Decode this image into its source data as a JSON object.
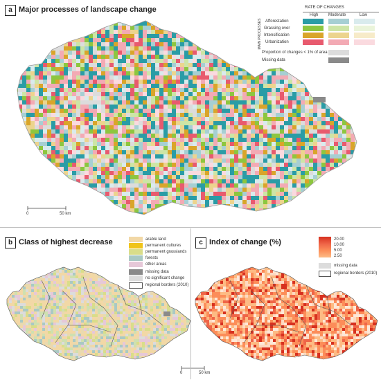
{
  "panel_a": {
    "letter": "a",
    "title": "Major processes of landscape change",
    "legend": {
      "header": "RATE OF CHANGES",
      "columns": [
        "High",
        "Moderate",
        "Low"
      ],
      "side_label": "MAIN PROCESSES",
      "rows": [
        {
          "label": "Afforestation",
          "colors": [
            "#2a9ca6",
            "#a6cfd3",
            "#d9ebed"
          ]
        },
        {
          "label": "Grassing over",
          "colors": [
            "#8dc63f",
            "#cde5a6",
            "#eaf4da"
          ]
        },
        {
          "label": "Intensification",
          "colors": [
            "#d9a52a",
            "#ecd48e",
            "#f7ebc9"
          ]
        },
        {
          "label": "Urbanization",
          "colors": [
            "#e85a6e",
            "#f3aab4",
            "#fadadf"
          ]
        }
      ],
      "extra": [
        {
          "label": "Proportion of changes < 1% of area",
          "color": "#dcdcdc"
        },
        {
          "label": "Missing data",
          "color": "#8a8a8a"
        }
      ]
    },
    "scale": {
      "start": "0",
      "end": "50 km"
    }
  },
  "panel_b": {
    "letter": "b",
    "title": "Class of highest decrease",
    "legend": [
      {
        "label": "arable land",
        "color": "#f2d8a6"
      },
      {
        "label": "permanent cultures",
        "color": "#f0c419"
      },
      {
        "label": "permanent grasslands",
        "color": "#d9dd8a"
      },
      {
        "label": "forests",
        "color": "#a9c9c4"
      },
      {
        "label": "other areas",
        "color": "#e6c8d8"
      }
    ],
    "extra": [
      {
        "label": "missing data",
        "color": "#8a8a8a"
      },
      {
        "label": "no significant change",
        "color": "#dcdcdc"
      },
      {
        "label": "regional borders (2010)",
        "color": "#ffffff"
      }
    ],
    "scale": {
      "start": "0",
      "end": "50 km"
    }
  },
  "panel_c": {
    "letter": "c",
    "title": "Index of change (%)",
    "legend": [
      {
        "label": "20.00",
        "color": "#d7301f"
      },
      {
        "label": "10.00",
        "color": "#ef6548"
      },
      {
        "label": "5.00",
        "color": "#fc8d59"
      },
      {
        "label": "2.50",
        "color": "#fdbb84"
      }
    ],
    "extra": [
      {
        "label": "missing data",
        "color": "#dcdcdc"
      },
      {
        "label": "regional borders (2010)",
        "color": "#ffffff"
      }
    ]
  },
  "map_colors": {
    "a": [
      "#2a9ca6",
      "#2a9ca6",
      "#a6cfd3",
      "#e85a6e",
      "#f3aab4",
      "#f3aab4",
      "#d9a52a",
      "#ecd48e",
      "#8dc63f",
      "#cde5a6",
      "#dcdcdc",
      "#d9ebed",
      "#fadadf"
    ],
    "b": [
      "#f2d8a6",
      "#f2d8a6",
      "#f2d8a6",
      "#e9d9b0",
      "#d9dd8a",
      "#cfe0b0",
      "#a9c9c4",
      "#e6c8d8",
      "#dcdcdc"
    ],
    "c": [
      "#fdd9c2",
      "#fdbb84",
      "#fdbb84",
      "#fc8d59",
      "#fc8d59",
      "#ef6548",
      "#d7301f",
      "#fee8d8"
    ]
  }
}
